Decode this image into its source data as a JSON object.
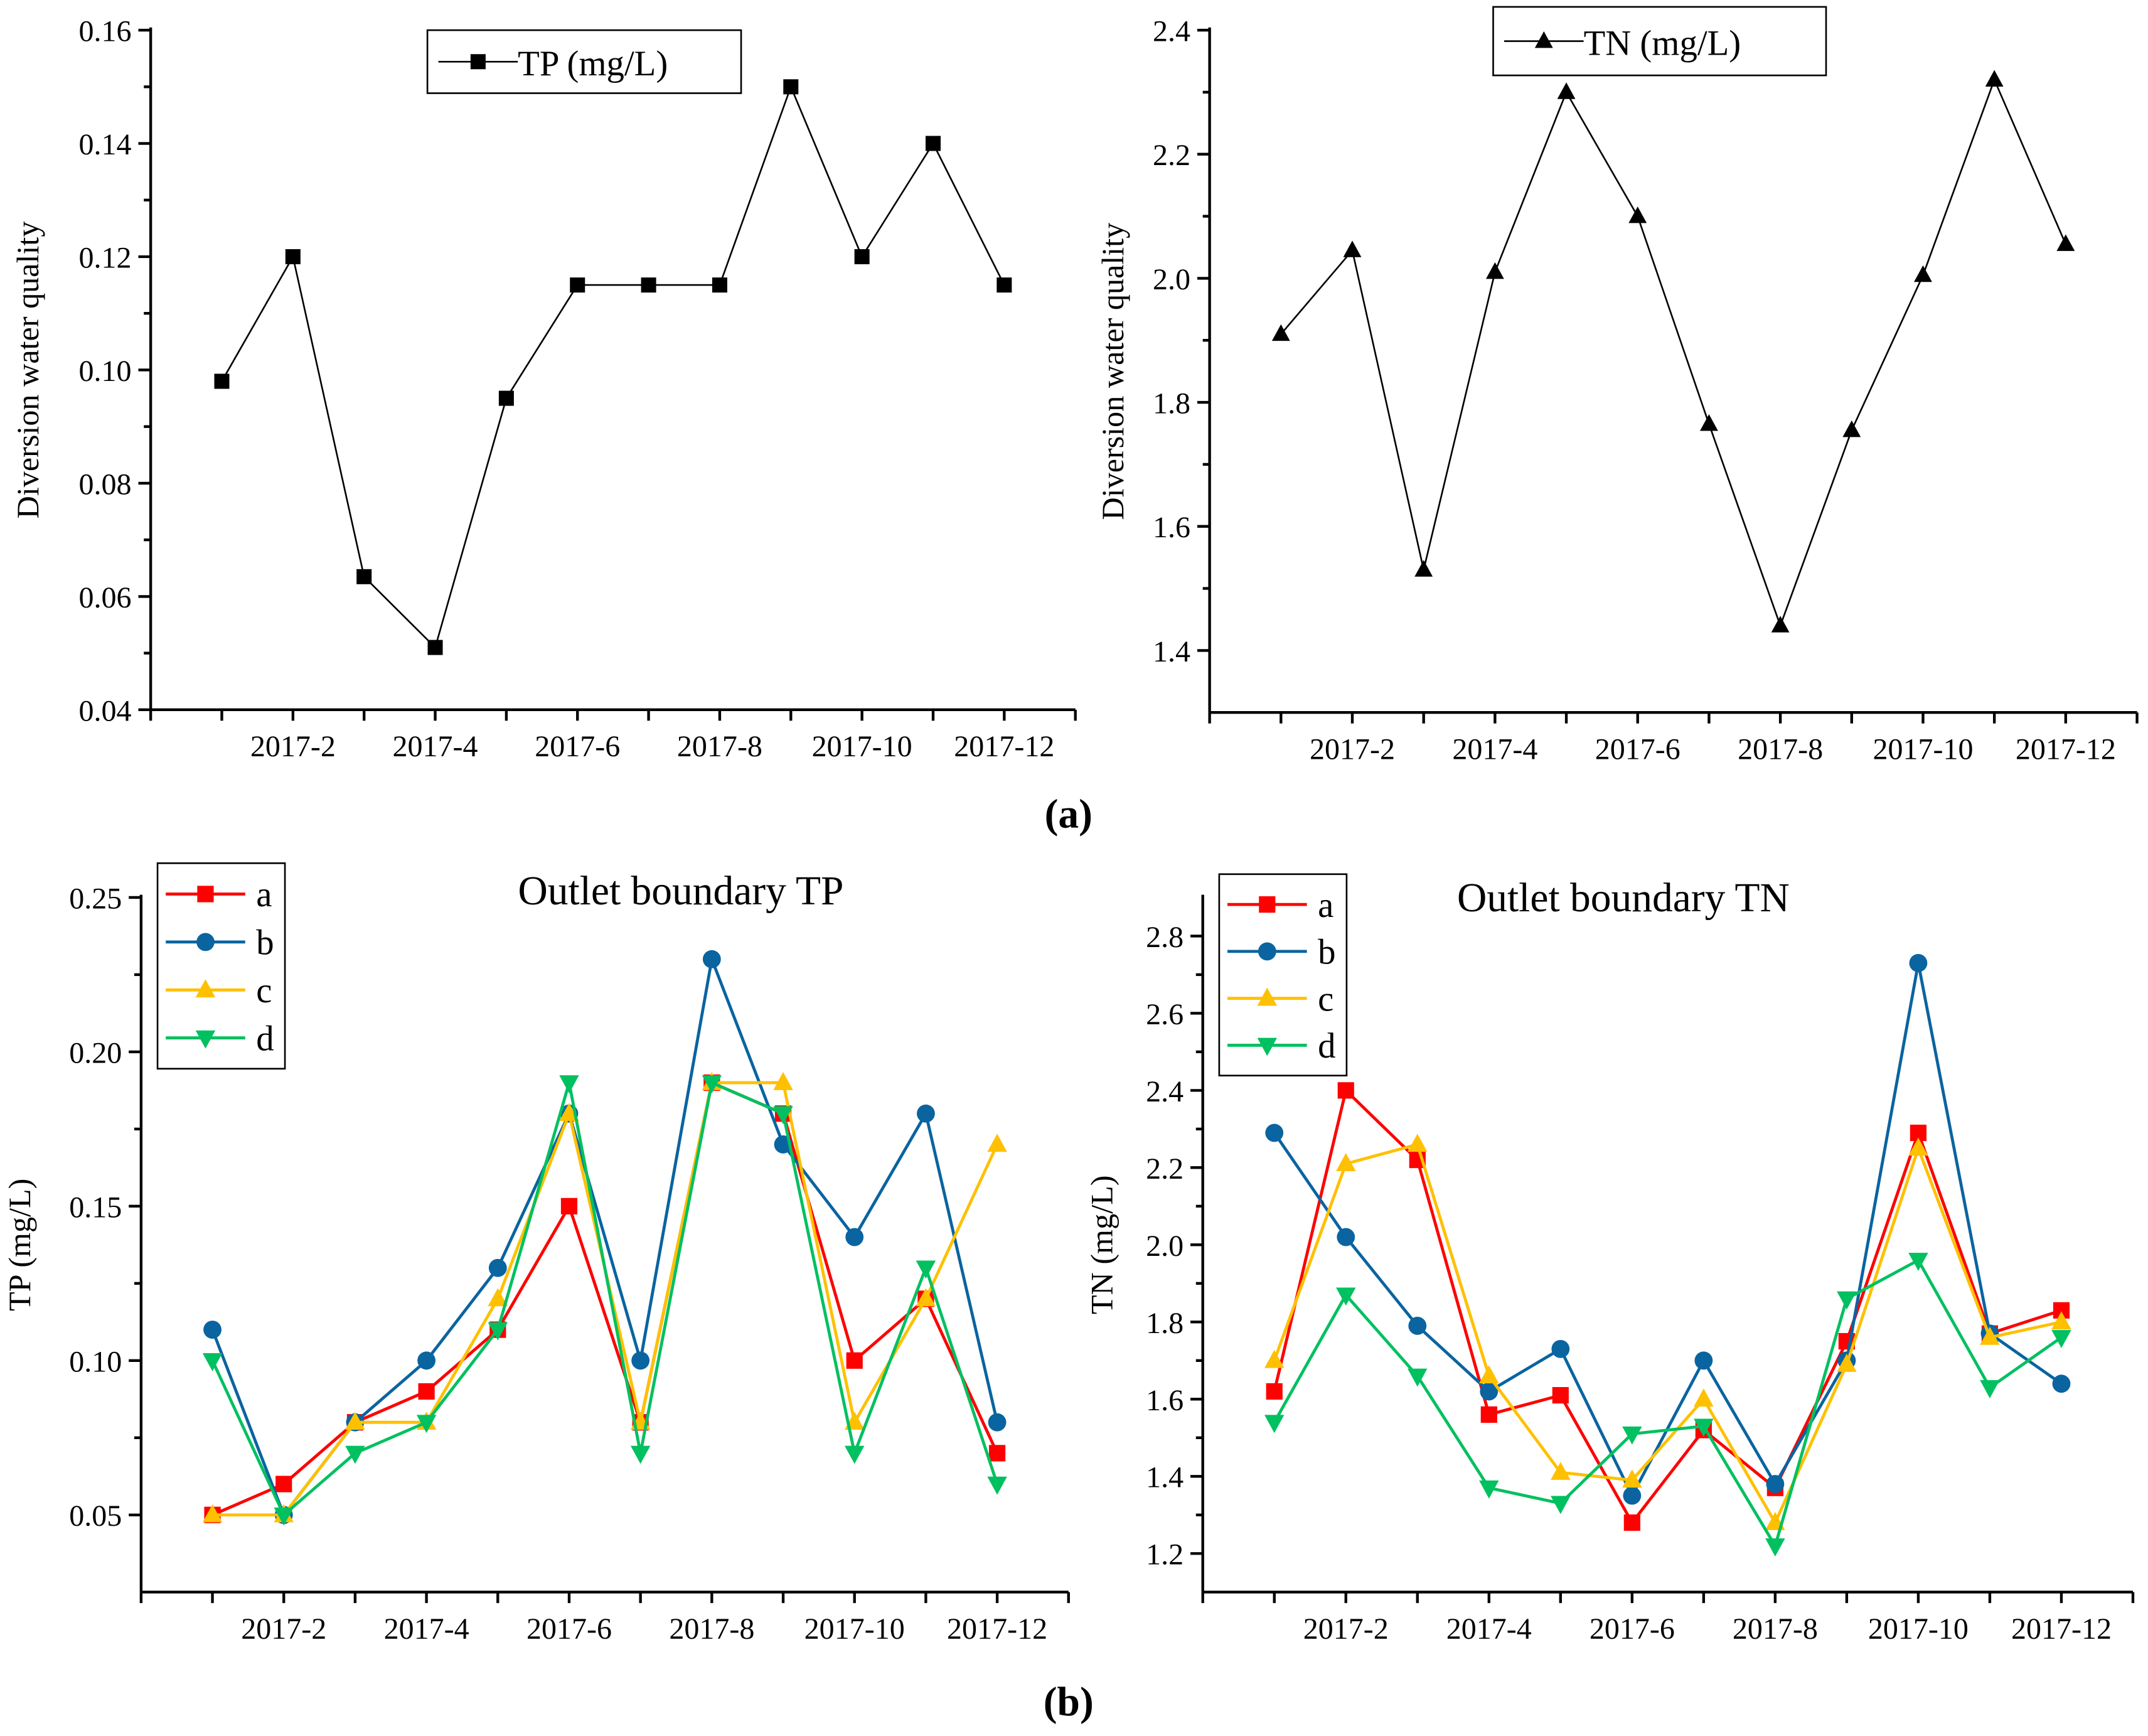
{
  "panel_labels": {
    "a": "(a)",
    "b": "(b)",
    "a_letter": "a",
    "b_letter": "b"
  },
  "chart_data": [
    {
      "type": "line",
      "title": "",
      "ylabel": "Diversion water quality",
      "xlabel": "",
      "x": [
        1,
        2,
        3,
        4,
        5,
        6,
        7,
        8,
        9,
        10,
        11,
        12
      ],
      "xlim": [
        0,
        13
      ],
      "xticks": [
        2,
        4,
        6,
        8,
        10,
        12
      ],
      "xtick_labels": [
        "2017-2",
        "2017-4",
        "2017-6",
        "2017-8",
        "2017-10",
        "2017-12"
      ],
      "ylim": [
        0.04,
        0.16
      ],
      "yticks": [
        0.04,
        0.06,
        0.08,
        0.1,
        0.12,
        0.14,
        0.16
      ],
      "ytick_labels": [
        "0.04",
        "0.06",
        "0.08",
        "0.10",
        "0.12",
        "0.14",
        "0.16"
      ],
      "legend_position": "top-center",
      "series": [
        {
          "name": "TP (mg/L)",
          "color": "#000000",
          "marker": "square",
          "values": [
            0.098,
            0.12,
            0.0635,
            0.051,
            0.095,
            0.115,
            0.115,
            0.115,
            0.15,
            0.12,
            0.14,
            0.115
          ]
        }
      ]
    },
    {
      "type": "line",
      "title": "",
      "ylabel": "Diversion water quality",
      "xlabel": "",
      "x": [
        1,
        2,
        3,
        4,
        5,
        6,
        7,
        8,
        9,
        10,
        11,
        12
      ],
      "xlim": [
        0,
        13
      ],
      "xticks": [
        2,
        4,
        6,
        8,
        10,
        12
      ],
      "xtick_labels": [
        "2017-2",
        "2017-4",
        "2017-6",
        "2017-8",
        "2017-10",
        "2017-12"
      ],
      "ylim": [
        1.3,
        2.4
      ],
      "yticks": [
        1.4,
        1.6,
        1.8,
        2.0,
        2.2,
        2.4
      ],
      "ytick_labels": [
        "1.4",
        "1.6",
        "1.8",
        "2.0",
        "2.2",
        "2.4"
      ],
      "legend_position": "top-center",
      "series": [
        {
          "name": "TN (mg/L)",
          "color": "#000000",
          "marker": "triangle-up",
          "values": [
            1.91,
            2.045,
            1.53,
            2.01,
            2.3,
            2.1,
            1.765,
            1.44,
            1.755,
            2.005,
            2.32,
            2.055
          ]
        }
      ]
    },
    {
      "type": "line",
      "title": "Outlet boundary TP",
      "ylabel": "TP (mg/L)",
      "xlabel": "",
      "x": [
        1,
        2,
        3,
        4,
        5,
        6,
        7,
        8,
        9,
        10,
        11,
        12
      ],
      "xlim": [
        0,
        13
      ],
      "xticks": [
        2,
        4,
        6,
        8,
        10,
        12
      ],
      "xtick_labels": [
        "2017-2",
        "2017-4",
        "2017-6",
        "2017-8",
        "2017-10",
        "2017-12"
      ],
      "ylim": [
        0.025,
        0.25
      ],
      "yticks": [
        0.05,
        0.1,
        0.15,
        0.2,
        0.25
      ],
      "ytick_labels": [
        "0.05",
        "0.10",
        "0.15",
        "0.20",
        "0.25"
      ],
      "legend_position": "top-left",
      "series": [
        {
          "name": "a",
          "color": "#ff0000",
          "marker": "square",
          "values": [
            0.05,
            0.06,
            0.08,
            0.09,
            0.11,
            0.15,
            0.08,
            0.19,
            0.18,
            0.1,
            0.12,
            0.07
          ]
        },
        {
          "name": "b",
          "color": "#0a64a0",
          "marker": "circle",
          "values": [
            0.11,
            0.05,
            0.08,
            0.1,
            0.13,
            0.18,
            0.1,
            0.23,
            0.17,
            0.14,
            0.18,
            0.08
          ]
        },
        {
          "name": "c",
          "color": "#ffc000",
          "marker": "triangle-up",
          "values": [
            0.05,
            0.05,
            0.08,
            0.08,
            0.12,
            0.18,
            0.08,
            0.19,
            0.19,
            0.08,
            0.12,
            0.17
          ]
        },
        {
          "name": "d",
          "color": "#00c060",
          "marker": "triangle-down",
          "values": [
            0.1,
            0.05,
            0.07,
            0.08,
            0.11,
            0.19,
            0.07,
            0.19,
            0.18,
            0.07,
            0.13,
            0.06
          ]
        }
      ]
    },
    {
      "type": "line",
      "title": "Outlet boundary TN",
      "ylabel": "TN (mg/L)",
      "xlabel": "",
      "x": [
        1,
        2,
        3,
        4,
        5,
        6,
        7,
        8,
        9,
        10,
        11,
        12
      ],
      "xlim": [
        0,
        13
      ],
      "xticks": [
        2,
        4,
        6,
        8,
        10,
        12
      ],
      "xtick_labels": [
        "2017-2",
        "2017-4",
        "2017-6",
        "2017-8",
        "2017-10",
        "2017-12"
      ],
      "ylim": [
        1.1,
        2.9
      ],
      "yticks": [
        1.2,
        1.4,
        1.6,
        1.8,
        2.0,
        2.2,
        2.4,
        2.6,
        2.8
      ],
      "ytick_labels": [
        "1.2",
        "1.4",
        "1.6",
        "1.8",
        "2.0",
        "2.2",
        "2.4",
        "2.6",
        "2.8"
      ],
      "legend_position": "top-left",
      "series": [
        {
          "name": "a",
          "color": "#ff0000",
          "marker": "square",
          "values": [
            1.62,
            2.4,
            2.22,
            1.56,
            1.61,
            1.28,
            1.52,
            1.37,
            1.75,
            2.29,
            1.77,
            1.83
          ]
        },
        {
          "name": "b",
          "color": "#0a64a0",
          "marker": "circle",
          "values": [
            2.29,
            2.02,
            1.79,
            1.62,
            1.73,
            1.35,
            1.7,
            1.38,
            1.7,
            2.73,
            1.77,
            1.64
          ]
        },
        {
          "name": "c",
          "color": "#ffc000",
          "marker": "triangle-up",
          "values": [
            1.7,
            2.21,
            2.26,
            1.66,
            1.41,
            1.39,
            1.6,
            1.28,
            1.69,
            2.25,
            1.76,
            1.8
          ]
        },
        {
          "name": "d",
          "color": "#00c060",
          "marker": "triangle-down",
          "values": [
            1.54,
            1.87,
            1.66,
            1.37,
            1.33,
            1.51,
            1.53,
            1.22,
            1.86,
            1.96,
            1.63,
            1.76
          ]
        }
      ]
    }
  ]
}
